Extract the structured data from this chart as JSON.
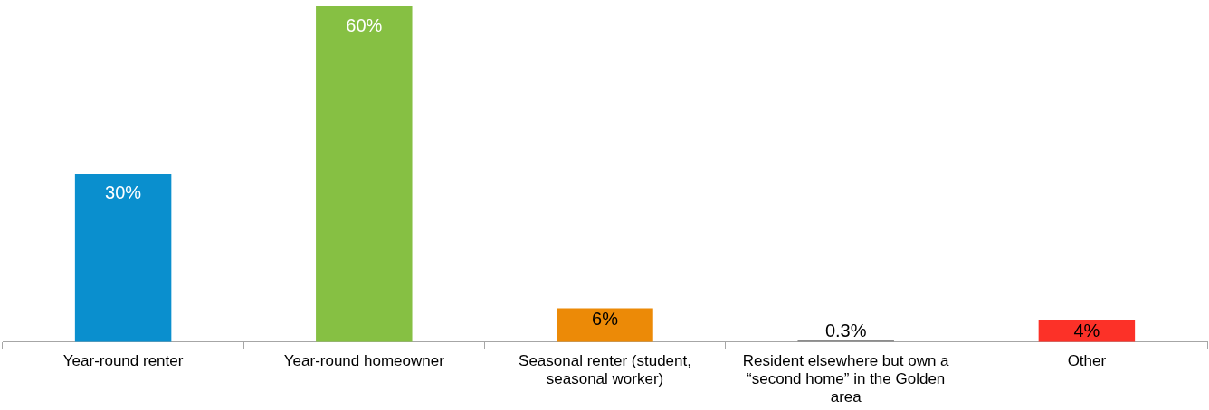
{
  "chart_data": {
    "type": "bar",
    "categories": [
      "Year-round renter",
      "Year-round homeowner",
      "Seasonal renter (student, seasonal worker)",
      "Resident elsewhere but own a “second home” in the Golden area",
      "Other"
    ],
    "values": [
      30,
      60,
      6,
      0.3,
      4
    ],
    "colors": [
      "#0a8fce",
      "#86c043",
      "#ec8a07",
      "#8c8c8c",
      "#fc3128"
    ],
    "value_labels": [
      "30%",
      "60%",
      "6%",
      "0.3%",
      "4%"
    ],
    "tick_labels": "x",
    "grid": false,
    "legend": false
  }
}
